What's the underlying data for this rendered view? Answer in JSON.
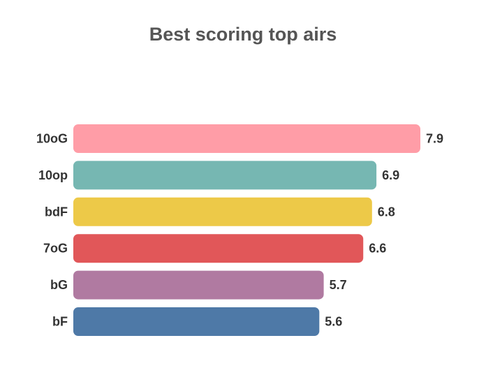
{
  "chart_data": {
    "type": "bar",
    "orientation": "horizontal",
    "title": "Best scoring top airs",
    "xlabel": "",
    "ylabel": "",
    "categories": [
      "10oG",
      "10op",
      "bdF",
      "7oG",
      "bG",
      "bF"
    ],
    "values": [
      7.9,
      6.9,
      6.8,
      6.6,
      5.7,
      5.6
    ],
    "value_labels": [
      "7.9",
      "6.9",
      "6.8",
      "6.6",
      "5.7",
      "5.6"
    ],
    "colors": [
      "#ff9da7",
      "#76b7b2",
      "#edc948",
      "#e15759",
      "#b07aa1",
      "#4e79a7"
    ],
    "xlim": [
      0,
      7.9
    ],
    "grid": false,
    "legend": "none"
  }
}
